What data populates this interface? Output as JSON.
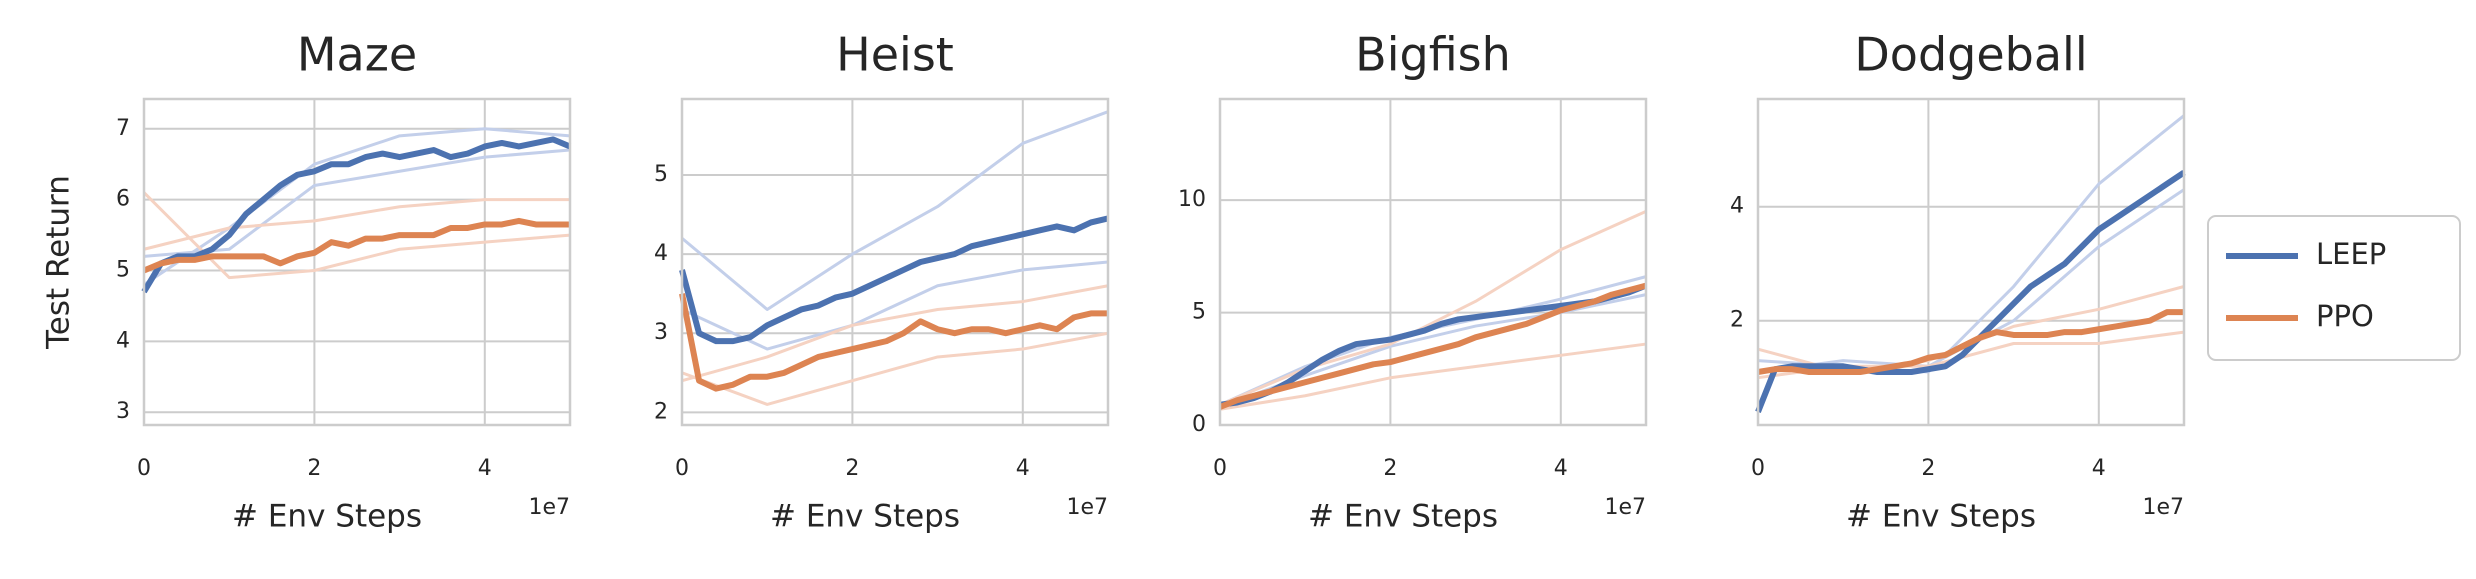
{
  "chart_data": [
    {
      "type": "line",
      "title": "Maze",
      "ylabel": "Test Return",
      "xlabel": "# Env Steps",
      "x_offset": "1e7",
      "xlim": [
        0,
        5
      ],
      "xticks": [
        0,
        2,
        4
      ],
      "ylim": [
        2.82,
        7.42
      ],
      "yticks": [
        3,
        4,
        5,
        6,
        7
      ],
      "grid": true,
      "series": [
        {
          "color": "#c3cfea",
          "x": [
            0,
            1,
            2,
            3,
            4,
            5
          ],
          "values": [
            4.8,
            5.6,
            6.5,
            6.9,
            7.0,
            6.9
          ]
        },
        {
          "color": "#c3cfea",
          "x": [
            0,
            1,
            2,
            3,
            4,
            5
          ],
          "values": [
            5.2,
            5.3,
            6.2,
            6.4,
            6.6,
            6.7
          ]
        },
        {
          "color": "#f5d2c2",
          "x": [
            0,
            1,
            2,
            3,
            4,
            5
          ],
          "values": [
            6.1,
            4.9,
            5.0,
            5.3,
            5.4,
            5.5
          ]
        },
        {
          "color": "#f5d2c2",
          "x": [
            0,
            1,
            2,
            3,
            4,
            5
          ],
          "values": [
            5.3,
            5.6,
            5.7,
            5.9,
            6.0,
            6.0
          ]
        },
        {
          "name": "LEEP",
          "color": "#4c72b0",
          "x": [
            0,
            0.2,
            0.4,
            0.6,
            0.8,
            1.0,
            1.2,
            1.4,
            1.6,
            1.8,
            2.0,
            2.2,
            2.4,
            2.6,
            2.8,
            3.0,
            3.2,
            3.4,
            3.6,
            3.8,
            4.0,
            4.2,
            4.4,
            4.6,
            4.8,
            5.0
          ],
          "values": [
            4.7,
            5.1,
            5.2,
            5.2,
            5.3,
            5.5,
            5.8,
            6.0,
            6.2,
            6.35,
            6.4,
            6.5,
            6.5,
            6.6,
            6.65,
            6.6,
            6.65,
            6.7,
            6.6,
            6.65,
            6.75,
            6.8,
            6.75,
            6.8,
            6.85,
            6.75
          ]
        },
        {
          "name": "PPO",
          "color": "#dd8452",
          "x": [
            0,
            0.2,
            0.4,
            0.6,
            0.8,
            1.0,
            1.2,
            1.4,
            1.6,
            1.8,
            2.0,
            2.2,
            2.4,
            2.6,
            2.8,
            3.0,
            3.2,
            3.4,
            3.6,
            3.8,
            4.0,
            4.2,
            4.4,
            4.6,
            4.8,
            5.0
          ],
          "values": [
            5.0,
            5.1,
            5.15,
            5.15,
            5.2,
            5.2,
            5.2,
            5.2,
            5.1,
            5.2,
            5.25,
            5.4,
            5.35,
            5.45,
            5.45,
            5.5,
            5.5,
            5.5,
            5.6,
            5.6,
            5.65,
            5.65,
            5.7,
            5.65,
            5.65,
            5.65
          ]
        }
      ]
    },
    {
      "type": "line",
      "title": "Heist",
      "xlabel": "# Env Steps",
      "x_offset": "1e7",
      "xlim": [
        0,
        5
      ],
      "xticks": [
        0,
        2,
        4
      ],
      "ylim": [
        1.84,
        5.96
      ],
      "yticks": [
        2,
        3,
        4,
        5
      ],
      "grid": true,
      "series": [
        {
          "color": "#c3cfea",
          "x": [
            0,
            1,
            2,
            3,
            4,
            5
          ],
          "values": [
            4.2,
            3.3,
            4.0,
            4.6,
            5.4,
            5.8
          ]
        },
        {
          "color": "#c3cfea",
          "x": [
            0,
            1,
            2,
            3,
            4,
            5
          ],
          "values": [
            3.3,
            2.8,
            3.1,
            3.6,
            3.8,
            3.9
          ]
        },
        {
          "color": "#f5d2c2",
          "x": [
            0,
            1,
            2,
            3,
            4,
            5
          ],
          "values": [
            2.5,
            2.1,
            2.4,
            2.7,
            2.8,
            3.0
          ]
        },
        {
          "color": "#f5d2c2",
          "x": [
            0,
            1,
            2,
            3,
            4,
            5
          ],
          "values": [
            2.4,
            2.7,
            3.1,
            3.3,
            3.4,
            3.6
          ]
        },
        {
          "name": "LEEP",
          "color": "#4c72b0",
          "x": [
            0,
            0.2,
            0.4,
            0.6,
            0.8,
            1.0,
            1.2,
            1.4,
            1.6,
            1.8,
            2.0,
            2.2,
            2.4,
            2.6,
            2.8,
            3.0,
            3.2,
            3.4,
            3.6,
            3.8,
            4.0,
            4.2,
            4.4,
            4.6,
            4.8,
            5.0
          ],
          "values": [
            3.8,
            3.0,
            2.9,
            2.9,
            2.95,
            3.1,
            3.2,
            3.3,
            3.35,
            3.45,
            3.5,
            3.6,
            3.7,
            3.8,
            3.9,
            3.95,
            4.0,
            4.1,
            4.15,
            4.2,
            4.25,
            4.3,
            4.35,
            4.3,
            4.4,
            4.45
          ]
        },
        {
          "name": "PPO",
          "color": "#dd8452",
          "x": [
            0,
            0.2,
            0.4,
            0.6,
            0.8,
            1.0,
            1.2,
            1.4,
            1.6,
            1.8,
            2.0,
            2.2,
            2.4,
            2.6,
            2.8,
            3.0,
            3.2,
            3.4,
            3.6,
            3.8,
            4.0,
            4.2,
            4.4,
            4.6,
            4.8,
            5.0
          ],
          "values": [
            3.5,
            2.4,
            2.3,
            2.35,
            2.45,
            2.45,
            2.5,
            2.6,
            2.7,
            2.75,
            2.8,
            2.85,
            2.9,
            3.0,
            3.15,
            3.05,
            3.0,
            3.05,
            3.05,
            3.0,
            3.05,
            3.1,
            3.05,
            3.2,
            3.25,
            3.25
          ]
        }
      ]
    },
    {
      "type": "line",
      "title": "Bigfish",
      "xlabel": "# Env Steps",
      "x_offset": "1e7",
      "xlim": [
        0,
        5
      ],
      "xticks": [
        0,
        2,
        4
      ],
      "ylim": [
        0,
        14.5
      ],
      "yticks": [
        0,
        5,
        10
      ],
      "grid": true,
      "series": [
        {
          "color": "#c3cfea",
          "x": [
            0,
            1,
            2,
            3,
            4,
            5
          ],
          "values": [
            0.9,
            2.6,
            3.9,
            4.7,
            5.6,
            6.6
          ]
        },
        {
          "color": "#c3cfea",
          "x": [
            0,
            1,
            2,
            3,
            4,
            5
          ],
          "values": [
            0.8,
            2.2,
            3.5,
            4.4,
            5.0,
            5.8
          ]
        },
        {
          "color": "#f5d2c2",
          "x": [
            0,
            1,
            2,
            3,
            4,
            5
          ],
          "values": [
            0.9,
            2.5,
            3.6,
            5.5,
            7.8,
            9.5
          ]
        },
        {
          "color": "#f5d2c2",
          "x": [
            0,
            1,
            2,
            3,
            4,
            5
          ],
          "values": [
            0.7,
            1.3,
            2.1,
            2.6,
            3.1,
            3.6
          ]
        },
        {
          "name": "LEEP",
          "color": "#4c72b0",
          "x": [
            0,
            0.2,
            0.4,
            0.6,
            0.8,
            1.0,
            1.2,
            1.4,
            1.6,
            1.8,
            2.0,
            2.2,
            2.4,
            2.6,
            2.8,
            3.0,
            3.2,
            3.4,
            3.6,
            3.8,
            4.0,
            4.2,
            4.4,
            4.6,
            4.8,
            5.0
          ],
          "values": [
            0.9,
            1.0,
            1.2,
            1.5,
            1.9,
            2.4,
            2.9,
            3.3,
            3.6,
            3.7,
            3.8,
            4.0,
            4.2,
            4.5,
            4.7,
            4.8,
            4.9,
            5.0,
            5.1,
            5.2,
            5.3,
            5.4,
            5.5,
            5.7,
            5.9,
            6.2
          ]
        },
        {
          "name": "PPO",
          "color": "#dd8452",
          "x": [
            0,
            0.2,
            0.4,
            0.6,
            0.8,
            1.0,
            1.2,
            1.4,
            1.6,
            1.8,
            2.0,
            2.2,
            2.4,
            2.6,
            2.8,
            3.0,
            3.2,
            3.4,
            3.6,
            3.8,
            4.0,
            4.2,
            4.4,
            4.6,
            4.8,
            5.0
          ],
          "values": [
            0.8,
            1.1,
            1.3,
            1.5,
            1.7,
            1.9,
            2.1,
            2.3,
            2.5,
            2.7,
            2.8,
            3.0,
            3.2,
            3.4,
            3.6,
            3.9,
            4.1,
            4.3,
            4.5,
            4.8,
            5.1,
            5.3,
            5.5,
            5.8,
            6.0,
            6.2
          ]
        }
      ]
    },
    {
      "type": "line",
      "title": "Dodgeball",
      "xlabel": "# Env Steps",
      "x_offset": "1e7",
      "xlim": [
        0,
        5
      ],
      "xticks": [
        0,
        2,
        4
      ],
      "ylim": [
        0.17,
        5.89
      ],
      "yticks": [
        2,
        4
      ],
      "grid": true,
      "legend": "outside right",
      "series": [
        {
          "color": "#c3cfea",
          "x": [
            0,
            1,
            2,
            3,
            4,
            5
          ],
          "values": [
            1.3,
            1.2,
            1.1,
            2.6,
            4.4,
            5.6
          ]
        },
        {
          "color": "#c3cfea",
          "x": [
            0,
            1,
            2,
            3,
            4,
            5
          ],
          "values": [
            1.1,
            1.3,
            1.2,
            2.0,
            3.3,
            4.3
          ]
        },
        {
          "color": "#f5d2c2",
          "x": [
            0,
            1,
            2,
            3,
            4,
            5
          ],
          "values": [
            1.5,
            1.1,
            1.3,
            1.9,
            2.2,
            2.6
          ]
        },
        {
          "color": "#f5d2c2",
          "x": [
            0,
            1,
            2,
            3,
            4,
            5
          ],
          "values": [
            1.0,
            1.2,
            1.2,
            1.6,
            1.6,
            1.8
          ]
        },
        {
          "name": "LEEP",
          "color": "#4c72b0",
          "x": [
            0,
            0.2,
            0.4,
            0.6,
            0.8,
            1.0,
            1.2,
            1.4,
            1.6,
            1.8,
            2.0,
            2.2,
            2.4,
            2.6,
            2.8,
            3.0,
            3.2,
            3.4,
            3.6,
            3.8,
            4.0,
            4.2,
            4.4,
            4.6,
            4.8,
            5.0
          ],
          "values": [
            0.4,
            1.15,
            1.2,
            1.2,
            1.2,
            1.2,
            1.15,
            1.1,
            1.1,
            1.1,
            1.15,
            1.2,
            1.4,
            1.7,
            2.0,
            2.3,
            2.6,
            2.8,
            3.0,
            3.3,
            3.6,
            3.8,
            4.0,
            4.2,
            4.4,
            4.6
          ]
        },
        {
          "name": "PPO",
          "color": "#dd8452",
          "x": [
            0,
            0.2,
            0.4,
            0.6,
            0.8,
            1.0,
            1.2,
            1.4,
            1.6,
            1.8,
            2.0,
            2.2,
            2.4,
            2.6,
            2.8,
            3.0,
            3.2,
            3.4,
            3.6,
            3.8,
            4.0,
            4.2,
            4.4,
            4.6,
            4.8,
            5.0
          ],
          "values": [
            1.1,
            1.15,
            1.15,
            1.1,
            1.1,
            1.1,
            1.1,
            1.15,
            1.2,
            1.25,
            1.35,
            1.4,
            1.55,
            1.7,
            1.8,
            1.75,
            1.75,
            1.75,
            1.8,
            1.8,
            1.85,
            1.9,
            1.95,
            2.0,
            2.15,
            2.15
          ]
        }
      ]
    }
  ]
}
